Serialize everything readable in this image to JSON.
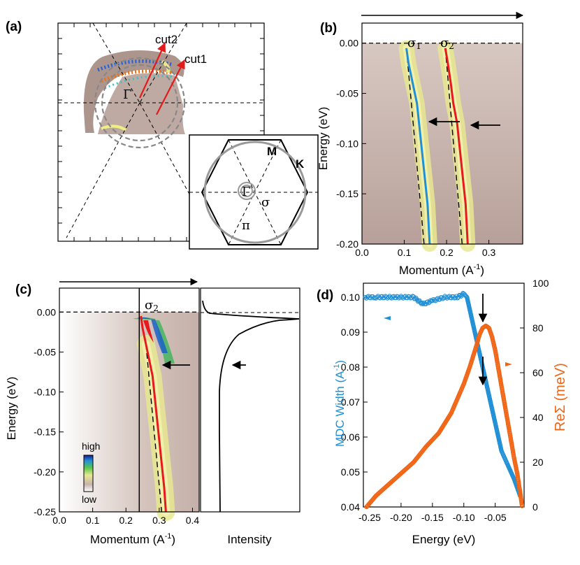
{
  "panels": {
    "a": {
      "label": "(a)",
      "gamma": "Γ",
      "cut1": "cut1",
      "cut2": "cut2",
      "inset": {
        "gamma": "Γ",
        "M": "M",
        "K": "K",
        "sigma": "σ",
        "pi": "π"
      }
    },
    "b": {
      "label": "(b)",
      "sigma1": "σ",
      "sigma1_sub": "1",
      "sigma2": "σ",
      "sigma2_sub": "2"
    },
    "c": {
      "label": "(c)",
      "sigma2": "σ",
      "sigma2_sub": "2",
      "colorbar": {
        "high": "high",
        "low": "low"
      },
      "intensity_label": "Intensity"
    },
    "d": {
      "label": "(d)"
    }
  },
  "colors": {
    "blue": "#1f8fd6",
    "red": "#e8191d",
    "orange": "#f06414",
    "specBg": "#c8b3ac",
    "specHi": "#e8e890",
    "arrow": "#e21b1b"
  },
  "chart_data": [
    {
      "id": "b",
      "type": "heatmap",
      "xlabel": "Momentum (A",
      "xlabel_sup": "-1",
      "xlabel_end": ")",
      "ylabel": "Energy (eV)",
      "xlim": [
        0.0,
        0.38
      ],
      "ylim": [
        -0.2,
        0.02
      ],
      "xticks": [
        "0.0",
        "0.1",
        "0.2",
        "0.3"
      ],
      "xtick_vals": [
        0.0,
        0.1,
        0.2,
        0.3
      ],
      "yticks": [
        "0.00",
        "-0.05",
        "-0.10",
        "-0.15",
        "-0.20"
      ],
      "ytick_vals": [
        0.0,
        -0.05,
        -0.1,
        -0.15,
        -0.2
      ],
      "series": [
        {
          "name": "sigma1 dispersion",
          "color": "blue",
          "k": [
            0.105,
            0.11,
            0.12,
            0.13,
            0.135,
            0.14,
            0.145,
            0.15,
            0.155,
            0.16
          ],
          "e": [
            -0.005,
            -0.02,
            -0.04,
            -0.06,
            -0.08,
            -0.1,
            -0.12,
            -0.14,
            -0.16,
            -0.2
          ]
        },
        {
          "name": "sigma2 dispersion",
          "color": "red",
          "k": [
            0.197,
            0.203,
            0.21,
            0.216,
            0.225,
            0.23,
            0.235,
            0.24,
            0.245,
            0.25
          ],
          "e": [
            -0.005,
            -0.02,
            -0.04,
            -0.06,
            -0.08,
            -0.1,
            -0.12,
            -0.14,
            -0.16,
            -0.2
          ]
        }
      ]
    },
    {
      "id": "c",
      "type": "heatmap",
      "xlabel": "Momentum (A",
      "xlabel_sup": "-1",
      "xlabel_end": ")",
      "ylabel": "Energy (eV)",
      "xlim": [
        0.0,
        0.42
      ],
      "ylim": [
        -0.25,
        0.03
      ],
      "xticks": [
        "0.0",
        "0.1",
        "0.2",
        "0.3",
        "0.4"
      ],
      "xtick_vals": [
        0.0,
        0.1,
        0.2,
        0.3,
        0.4
      ],
      "yticks": [
        "0.00",
        "-0.05",
        "-0.10",
        "-0.15",
        "-0.20",
        "-0.25"
      ],
      "ytick_vals": [
        0.0,
        -0.05,
        -0.1,
        -0.15,
        -0.2,
        -0.25
      ],
      "series": [
        {
          "name": "sigma2 dispersion",
          "color": "red",
          "k": [
            0.26,
            0.27,
            0.28,
            0.285,
            0.29,
            0.295,
            0.3,
            0.305,
            0.31,
            0.315,
            0.32
          ],
          "e": [
            -0.04,
            -0.06,
            -0.08,
            -0.1,
            -0.12,
            -0.14,
            -0.16,
            -0.18,
            -0.2,
            -0.22,
            -0.25
          ]
        }
      ]
    },
    {
      "id": "d",
      "type": "scatter",
      "xlabel": "Energy (eV)",
      "ylabel_left": "MDC Width (A",
      "ylabel_left_sup": "-1",
      "ylabel_left_end": ")",
      "ylabel_right": "ReΣ (meV)",
      "xlim": [
        -0.26,
        -0.004
      ],
      "ylim_left": [
        0.04,
        0.104
      ],
      "ylim_right": [
        0,
        100
      ],
      "xticks": [
        "-0.25",
        "-0.20",
        "-0.15",
        "-0.10",
        "-0.05"
      ],
      "xtick_vals": [
        -0.25,
        -0.2,
        -0.15,
        -0.1,
        -0.05
      ],
      "yticks_left": [
        "0.04",
        "0.05",
        "0.06",
        "0.07",
        "0.08",
        "0.09",
        "0.10"
      ],
      "ytick_left_vals": [
        0.04,
        0.05,
        0.06,
        0.07,
        0.08,
        0.09,
        0.1
      ],
      "yticks_right": [
        "0",
        "20",
        "40",
        "60",
        "80",
        "100"
      ],
      "ytick_right_vals": [
        0,
        20,
        40,
        60,
        80,
        100
      ],
      "series": [
        {
          "name": "MDC Width",
          "axis": "left",
          "color": "blue",
          "x": [
            -0.257,
            -0.24,
            -0.22,
            -0.2,
            -0.18,
            -0.165,
            -0.15,
            -0.13,
            -0.11,
            -0.1,
            -0.095,
            -0.09,
            -0.085,
            -0.08,
            -0.075,
            -0.07,
            -0.065,
            -0.06,
            -0.055,
            -0.05,
            -0.045,
            -0.04,
            -0.035,
            -0.03,
            -0.02,
            -0.01
          ],
          "y": [
            0.1,
            0.1,
            0.1,
            0.1,
            0.1,
            0.098,
            0.099,
            0.1,
            0.1,
            0.101,
            0.1,
            0.096,
            0.092,
            0.088,
            0.084,
            0.08,
            0.076,
            0.072,
            0.068,
            0.064,
            0.06,
            0.056,
            0.054,
            0.052,
            0.048,
            0.043
          ]
        },
        {
          "name": "ReΣ",
          "axis": "right",
          "color": "orange",
          "x": [
            -0.255,
            -0.24,
            -0.22,
            -0.2,
            -0.18,
            -0.16,
            -0.14,
            -0.12,
            -0.1,
            -0.09,
            -0.08,
            -0.075,
            -0.07,
            -0.065,
            -0.06,
            -0.055,
            -0.05,
            -0.045,
            -0.04,
            -0.035,
            -0.03,
            -0.025,
            -0.02,
            -0.015,
            -0.01,
            -0.007
          ],
          "y": [
            0,
            5,
            10,
            15,
            20,
            27,
            33,
            42,
            55,
            63,
            72,
            77,
            80,
            81,
            80,
            76,
            70,
            62,
            54,
            46,
            38,
            30,
            22,
            15,
            6,
            0
          ]
        }
      ],
      "arrows": [
        {
          "series": "MDC Width",
          "x": -0.068
        },
        {
          "series": "ReΣ",
          "x": -0.068
        }
      ]
    }
  ]
}
